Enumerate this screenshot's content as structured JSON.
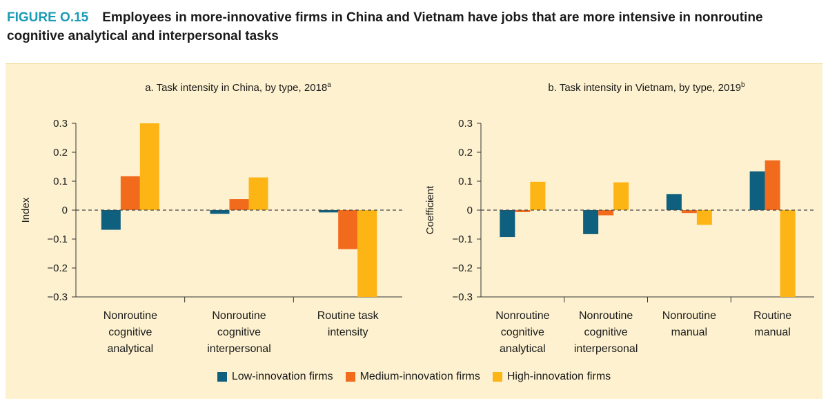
{
  "figure": {
    "label": "FIGURE O.15",
    "title": "Employees in more-innovative firms in China and Vietnam have jobs that are more intensive in nonroutine cognitive analytical and interpersonal tasks"
  },
  "colors": {
    "low": "#0f5f7e",
    "medium": "#f26b1d",
    "high": "#fdb515",
    "panel_bg": "#fdf1cf",
    "axis": "#333333"
  },
  "legend": [
    {
      "name": "Low-innovation firms",
      "color_key": "low"
    },
    {
      "name": "Medium-innovation firms",
      "color_key": "medium"
    },
    {
      "name": "High-innovation firms",
      "color_key": "high"
    }
  ],
  "chart_data": [
    {
      "type": "bar",
      "title": "a. Task intensity in China, by type, 2018",
      "title_sup": "a",
      "xlabel": "",
      "ylabel": "Index",
      "ylim": [
        -0.3,
        0.3
      ],
      "yticks": [
        0.3,
        0.2,
        0.1,
        0,
        -0.1,
        -0.2,
        -0.3
      ],
      "ytick_labels": [
        "0.3",
        "0.2",
        "0.1",
        "0",
        "−0.1",
        "−0.2",
        "−0.3"
      ],
      "categories": [
        [
          "Nonroutine",
          "cognitive",
          "analytical"
        ],
        [
          "Nonroutine",
          "cognitive",
          "interpersonal"
        ],
        [
          "Routine task",
          "intensity"
        ]
      ],
      "series": [
        {
          "name": "Low-innovation firms",
          "color_key": "low",
          "values": [
            -0.068,
            -0.013,
            -0.008
          ]
        },
        {
          "name": "Medium-innovation firms",
          "color_key": "medium",
          "values": [
            0.117,
            0.038,
            -0.135
          ]
        },
        {
          "name": "High-innovation firms",
          "color_key": "high",
          "values": [
            0.3,
            0.113,
            -0.3
          ]
        }
      ]
    },
    {
      "type": "bar",
      "title": "b. Task intensity in Vietnam, by type, 2019",
      "title_sup": "b",
      "xlabel": "",
      "ylabel": "Coefficient",
      "ylim": [
        -0.3,
        0.3
      ],
      "yticks": [
        0.3,
        0.2,
        0.1,
        0,
        -0.1,
        -0.2,
        -0.3
      ],
      "ytick_labels": [
        "0.3",
        "0.2",
        "0.1",
        "0",
        "−0.1",
        "−0.2",
        "−0.3"
      ],
      "categories": [
        [
          "Nonroutine",
          "cognitive",
          "analytical"
        ],
        [
          "Nonroutine",
          "cognitive",
          "interpersonal"
        ],
        [
          "Nonroutine",
          "manual"
        ],
        [
          "Routine",
          "manual"
        ]
      ],
      "series": [
        {
          "name": "Low-innovation firms",
          "color_key": "low",
          "values": [
            -0.093,
            -0.083,
            0.055,
            0.134
          ]
        },
        {
          "name": "Medium-innovation firms",
          "color_key": "medium",
          "values": [
            -0.007,
            -0.018,
            -0.01,
            0.172
          ]
        },
        {
          "name": "High-innovation firms",
          "color_key": "high",
          "values": [
            0.098,
            0.096,
            -0.051,
            -0.3
          ]
        }
      ]
    }
  ]
}
